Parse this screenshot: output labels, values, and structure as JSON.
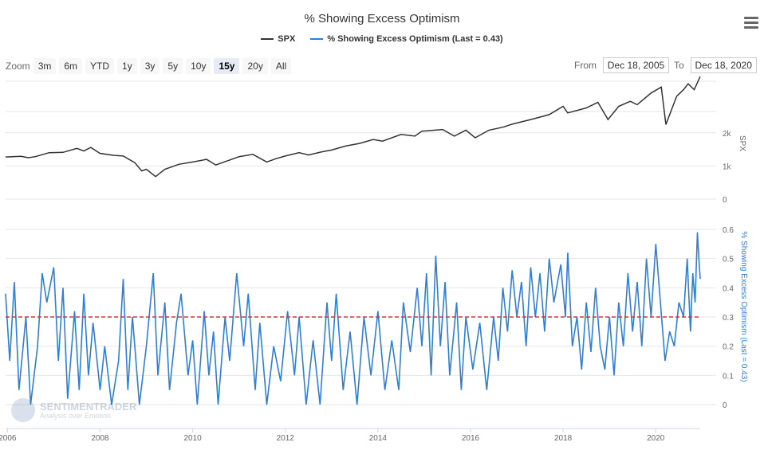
{
  "title": "% Showing Excess Optimism",
  "legend": [
    {
      "name": "SPX",
      "color": "#333333"
    },
    {
      "name": "% Showing Excess Optimism (Last = 0.43)",
      "color": "#2f7ed8"
    }
  ],
  "zoom": {
    "label": "Zoom",
    "buttons": [
      "3m",
      "6m",
      "YTD",
      "1y",
      "3y",
      "5y",
      "10y",
      "15y",
      "20y",
      "All"
    ],
    "active": "15y"
  },
  "range": {
    "from_label": "From",
    "from_value": "Dec 18, 2005",
    "to_label": "To",
    "to_value": "Dec 18, 2020"
  },
  "watermark": {
    "name": "SENTIMENTRADER",
    "tagline": "Analysis over Emotion"
  },
  "colors": {
    "spx": "#333333",
    "optimism": "#2f7ed8",
    "reference": "#e03030",
    "grid": "#e6e6e6"
  },
  "chart_data": [
    {
      "type": "line",
      "name": "SPX",
      "ylabel": "SPX",
      "yticks": [
        "0",
        "1k",
        "2k"
      ],
      "ylim": [
        0,
        3700
      ],
      "x_range": [
        2005.96,
        2020.96
      ],
      "points": [
        [
          2005.96,
          1270
        ],
        [
          2006.3,
          1290
        ],
        [
          2006.45,
          1250
        ],
        [
          2006.6,
          1280
        ],
        [
          2006.9,
          1400
        ],
        [
          2007.2,
          1410
        ],
        [
          2007.5,
          1530
        ],
        [
          2007.65,
          1450
        ],
        [
          2007.8,
          1560
        ],
        [
          2008.0,
          1380
        ],
        [
          2008.3,
          1320
        ],
        [
          2008.5,
          1300
        ],
        [
          2008.75,
          1100
        ],
        [
          2008.9,
          850
        ],
        [
          2009.0,
          900
        ],
        [
          2009.2,
          680
        ],
        [
          2009.4,
          900
        ],
        [
          2009.7,
          1050
        ],
        [
          2010.0,
          1120
        ],
        [
          2010.3,
          1200
        ],
        [
          2010.5,
          1030
        ],
        [
          2010.8,
          1180
        ],
        [
          2011.0,
          1280
        ],
        [
          2011.3,
          1350
        ],
        [
          2011.6,
          1120
        ],
        [
          2011.8,
          1220
        ],
        [
          2012.0,
          1300
        ],
        [
          2012.3,
          1400
        ],
        [
          2012.5,
          1330
        ],
        [
          2012.8,
          1430
        ],
        [
          2013.0,
          1480
        ],
        [
          2013.3,
          1600
        ],
        [
          2013.6,
          1680
        ],
        [
          2013.9,
          1800
        ],
        [
          2014.1,
          1750
        ],
        [
          2014.5,
          1950
        ],
        [
          2014.8,
          1900
        ],
        [
          2014.95,
          2050
        ],
        [
          2015.4,
          2100
        ],
        [
          2015.65,
          1900
        ],
        [
          2015.9,
          2080
        ],
        [
          2016.1,
          1850
        ],
        [
          2016.4,
          2080
        ],
        [
          2016.7,
          2170
        ],
        [
          2016.9,
          2260
        ],
        [
          2017.3,
          2400
        ],
        [
          2017.7,
          2550
        ],
        [
          2018.0,
          2800
        ],
        [
          2018.1,
          2600
        ],
        [
          2018.5,
          2750
        ],
        [
          2018.75,
          2920
        ],
        [
          2018.97,
          2400
        ],
        [
          2019.2,
          2800
        ],
        [
          2019.45,
          2950
        ],
        [
          2019.6,
          2850
        ],
        [
          2019.9,
          3200
        ],
        [
          2020.12,
          3380
        ],
        [
          2020.22,
          2250
        ],
        [
          2020.45,
          3100
        ],
        [
          2020.6,
          3300
        ],
        [
          2020.7,
          3480
        ],
        [
          2020.83,
          3300
        ],
        [
          2020.96,
          3700
        ]
      ]
    },
    {
      "type": "line",
      "name": "% Showing Excess Optimism (Last = 0.43)",
      "ylabel": "% Showing Excess Optimism (Last = 0.43)",
      "yticks": [
        "0",
        "0.1",
        "0.2",
        "0.3",
        "0.4",
        "0.5",
        "0.6"
      ],
      "ylim": [
        0,
        0.6
      ],
      "reference_line": 0.3,
      "last": 0.43,
      "x_range": [
        2005.96,
        2020.96
      ],
      "points": [
        [
          2005.96,
          0.38
        ],
        [
          2006.05,
          0.15
        ],
        [
          2006.15,
          0.42
        ],
        [
          2006.25,
          0.05
        ],
        [
          2006.4,
          0.3
        ],
        [
          2006.5,
          0.0
        ],
        [
          2006.65,
          0.2
        ],
        [
          2006.75,
          0.45
        ],
        [
          2006.85,
          0.35
        ],
        [
          2007.0,
          0.47
        ],
        [
          2007.1,
          0.15
        ],
        [
          2007.2,
          0.4
        ],
        [
          2007.3,
          0.02
        ],
        [
          2007.45,
          0.32
        ],
        [
          2007.55,
          0.05
        ],
        [
          2007.65,
          0.38
        ],
        [
          2007.75,
          0.1
        ],
        [
          2007.85,
          0.28
        ],
        [
          2008.0,
          0.05
        ],
        [
          2008.1,
          0.2
        ],
        [
          2008.25,
          0.0
        ],
        [
          2008.4,
          0.15
        ],
        [
          2008.5,
          0.43
        ],
        [
          2008.6,
          0.05
        ],
        [
          2008.7,
          0.3
        ],
        [
          2008.85,
          0.0
        ],
        [
          2009.0,
          0.2
        ],
        [
          2009.15,
          0.45
        ],
        [
          2009.25,
          0.1
        ],
        [
          2009.4,
          0.35
        ],
        [
          2009.5,
          0.05
        ],
        [
          2009.65,
          0.28
        ],
        [
          2009.75,
          0.38
        ],
        [
          2009.9,
          0.1
        ],
        [
          2010.0,
          0.22
        ],
        [
          2010.1,
          0.0
        ],
        [
          2010.25,
          0.32
        ],
        [
          2010.35,
          0.1
        ],
        [
          2010.45,
          0.25
        ],
        [
          2010.55,
          0.0
        ],
        [
          2010.7,
          0.3
        ],
        [
          2010.8,
          0.15
        ],
        [
          2010.95,
          0.45
        ],
        [
          2011.1,
          0.2
        ],
        [
          2011.2,
          0.38
        ],
        [
          2011.35,
          0.05
        ],
        [
          2011.45,
          0.28
        ],
        [
          2011.6,
          0.0
        ],
        [
          2011.75,
          0.2
        ],
        [
          2011.9,
          0.08
        ],
        [
          2012.05,
          0.32
        ],
        [
          2012.2,
          0.1
        ],
        [
          2012.3,
          0.3
        ],
        [
          2012.45,
          0.0
        ],
        [
          2012.6,
          0.22
        ],
        [
          2012.75,
          0.0
        ],
        [
          2012.9,
          0.35
        ],
        [
          2013.0,
          0.15
        ],
        [
          2013.1,
          0.38
        ],
        [
          2013.25,
          0.05
        ],
        [
          2013.4,
          0.25
        ],
        [
          2013.55,
          0.0
        ],
        [
          2013.7,
          0.3
        ],
        [
          2013.85,
          0.1
        ],
        [
          2014.0,
          0.32
        ],
        [
          2014.15,
          0.05
        ],
        [
          2014.3,
          0.22
        ],
        [
          2014.45,
          0.05
        ],
        [
          2014.55,
          0.35
        ],
        [
          2014.7,
          0.18
        ],
        [
          2014.85,
          0.4
        ],
        [
          2014.95,
          0.2
        ],
        [
          2015.05,
          0.45
        ],
        [
          2015.15,
          0.1
        ],
        [
          2015.25,
          0.51
        ],
        [
          2015.35,
          0.2
        ],
        [
          2015.45,
          0.42
        ],
        [
          2015.55,
          0.1
        ],
        [
          2015.7,
          0.35
        ],
        [
          2015.8,
          0.05
        ],
        [
          2015.9,
          0.3
        ],
        [
          2016.05,
          0.12
        ],
        [
          2016.2,
          0.28
        ],
        [
          2016.35,
          0.05
        ],
        [
          2016.5,
          0.3
        ],
        [
          2016.6,
          0.15
        ],
        [
          2016.7,
          0.4
        ],
        [
          2016.8,
          0.25
        ],
        [
          2016.9,
          0.46
        ],
        [
          2017.0,
          0.3
        ],
        [
          2017.1,
          0.42
        ],
        [
          2017.2,
          0.2
        ],
        [
          2017.3,
          0.47
        ],
        [
          2017.4,
          0.3
        ],
        [
          2017.5,
          0.45
        ],
        [
          2017.6,
          0.25
        ],
        [
          2017.7,
          0.5
        ],
        [
          2017.8,
          0.35
        ],
        [
          2017.95,
          0.48
        ],
        [
          2018.05,
          0.3
        ],
        [
          2018.1,
          0.52
        ],
        [
          2018.2,
          0.2
        ],
        [
          2018.3,
          0.3
        ],
        [
          2018.4,
          0.12
        ],
        [
          2018.5,
          0.35
        ],
        [
          2018.6,
          0.18
        ],
        [
          2018.7,
          0.4
        ],
        [
          2018.8,
          0.2
        ],
        [
          2018.9,
          0.12
        ],
        [
          2019.0,
          0.3
        ],
        [
          2019.1,
          0.1
        ],
        [
          2019.2,
          0.35
        ],
        [
          2019.3,
          0.2
        ],
        [
          2019.4,
          0.45
        ],
        [
          2019.5,
          0.25
        ],
        [
          2019.6,
          0.42
        ],
        [
          2019.7,
          0.2
        ],
        [
          2019.8,
          0.5
        ],
        [
          2019.9,
          0.3
        ],
        [
          2020.0,
          0.55
        ],
        [
          2020.1,
          0.35
        ],
        [
          2020.2,
          0.15
        ],
        [
          2020.3,
          0.25
        ],
        [
          2020.4,
          0.2
        ],
        [
          2020.5,
          0.35
        ],
        [
          2020.6,
          0.3
        ],
        [
          2020.68,
          0.5
        ],
        [
          2020.75,
          0.25
        ],
        [
          2020.8,
          0.45
        ],
        [
          2020.85,
          0.35
        ],
        [
          2020.9,
          0.59
        ],
        [
          2020.93,
          0.5
        ],
        [
          2020.96,
          0.43
        ]
      ]
    }
  ],
  "x_ticks": [
    "2006",
    "2008",
    "2010",
    "2012",
    "2014",
    "2016",
    "2018",
    "2020"
  ]
}
